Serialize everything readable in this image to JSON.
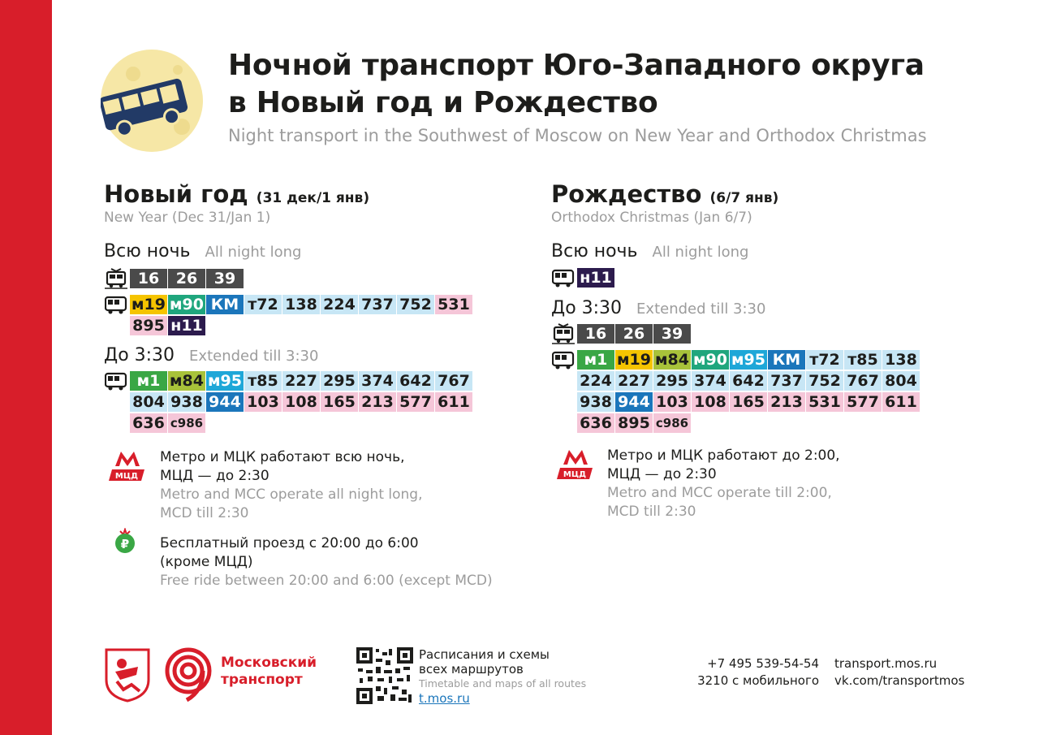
{
  "header": {
    "title_line1": "Ночной транспорт Юго-Западного округа",
    "title_line2": "в Новый год и Рождество",
    "subtitle": "Night transport in the Southwest of Moscow on New Year and Orthodox Christmas"
  },
  "new_year": {
    "title": "Новый год",
    "dates": "(31 дек/1 янв)",
    "title_en": "New Year (Dec 31/Jan 1)",
    "all_night": {
      "ru": "Всю ночь",
      "en": "All night long"
    },
    "all_night_tram": [
      "16",
      "26",
      "39"
    ],
    "all_night_bus_row1": [
      "м19",
      "м90",
      "КМ",
      "т72",
      "138",
      "224",
      "737",
      "752",
      "531"
    ],
    "all_night_bus_row2": [
      "895",
      "н11"
    ],
    "till": {
      "ru": "До 3:30",
      "en": "Extended till 3:30"
    },
    "till_bus_row1": [
      "м1",
      "м84",
      "м95",
      "т85",
      "227",
      "295",
      "374",
      "642",
      "767"
    ],
    "till_bus_row2": [
      "804",
      "938",
      "944",
      "103",
      "108",
      "165",
      "213",
      "577",
      "611"
    ],
    "till_bus_row3": [
      "636",
      "с986"
    ],
    "metro_ru_1": "Метро и МЦК работают всю ночь,",
    "metro_ru_2": "МЦД — до 2:30",
    "metro_en_1": "Metro and MCC operate all night long,",
    "metro_en_2": "MCD till 2:30",
    "free_ru_1": "Бесплатный проезд с 20:00 до 6:00",
    "free_ru_2": "(кроме МЦД)",
    "free_en": "Free ride between 20:00 and 6:00 (except MCD)"
  },
  "christmas": {
    "title": "Рождество",
    "dates": "(6/7 янв)",
    "title_en": "Orthodox Christmas (Jan 6/7)",
    "all_night": {
      "ru": "Всю ночь",
      "en": "All night long"
    },
    "all_night_bus": [
      "н11"
    ],
    "till": {
      "ru": "До 3:30",
      "en": "Extended till 3:30"
    },
    "till_tram": [
      "16",
      "26",
      "39"
    ],
    "till_bus_row1": [
      "м1",
      "м19",
      "м84",
      "м90",
      "м95",
      "КМ",
      "т72",
      "т85",
      "138"
    ],
    "till_bus_row2": [
      "224",
      "227",
      "295",
      "374",
      "642",
      "737",
      "752",
      "767",
      "804"
    ],
    "till_bus_row3": [
      "938",
      "944",
      "103",
      "108",
      "165",
      "213",
      "531",
      "577",
      "611"
    ],
    "till_bus_row4": [
      "636",
      "895",
      "с986"
    ],
    "metro_ru_1": "Метро и МЦК работают до 2:00,",
    "metro_ru_2": "МЦД — до 2:30",
    "metro_en_1": "Metro and MCC operate till 2:00,",
    "metro_en_2": "MCD till 2:30"
  },
  "footer": {
    "brand_1": "Московский",
    "brand_2": "транспорт",
    "qr_ru_1": "Расписания и схемы",
    "qr_ru_2": "всех маршрутов",
    "qr_en": "Timetable and maps of all routes",
    "qr_link": "t.mos.ru",
    "phone": "+7 495 539-54-54",
    "mobile": "3210 с мобильного",
    "site": "transport.mos.ru",
    "vk": "vk.com/transportmos"
  },
  "colors": {
    "accent_red": "#d81e2a",
    "tram_dark": "#4a4a4a",
    "night": "#2c1b4d",
    "light_blue": "#c7e6f5",
    "pink": "#f5c6d8"
  }
}
